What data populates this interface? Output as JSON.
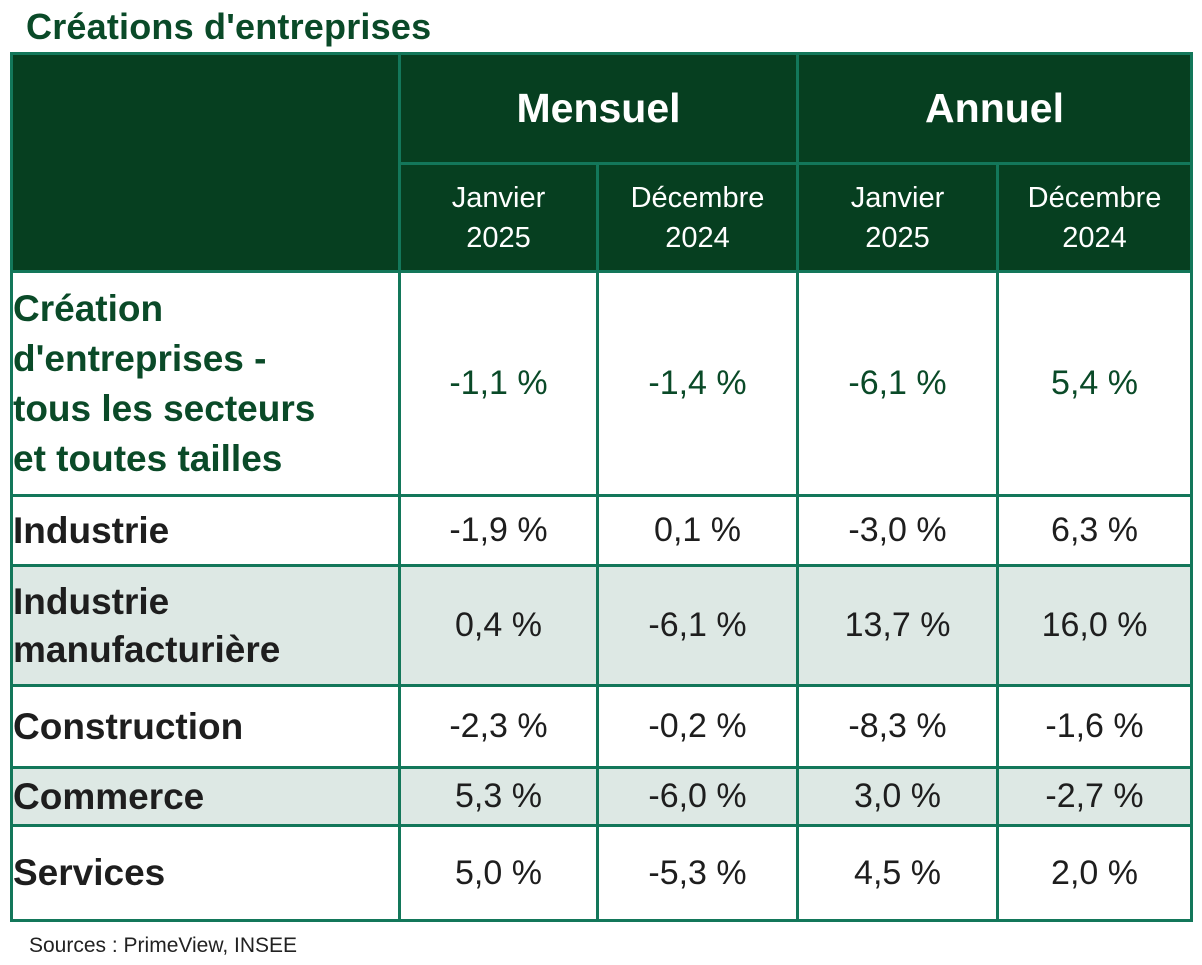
{
  "title": "Créations d'entreprises",
  "header": {
    "groups": [
      "Mensuel",
      "Annuel"
    ],
    "subcolumns": [
      {
        "line1": "Janvier",
        "line2": "2025"
      },
      {
        "line1": "Décembre",
        "line2": "2024"
      },
      {
        "line1": "Janvier",
        "line2": "2025"
      },
      {
        "line1": "Décembre",
        "line2": "2024"
      }
    ]
  },
  "rows": [
    {
      "label_lines": [
        "Création",
        "d'entreprises -",
        "tous les secteurs",
        "et toutes tailles"
      ],
      "values": [
        "-1,1 %",
        "-1,4 %",
        "-6,1 %",
        "5,4 %"
      ]
    },
    {
      "label_lines": [
        "Industrie"
      ],
      "values": [
        "-1,9 %",
        "0,1 %",
        "-3,0 %",
        "6,3 %"
      ]
    },
    {
      "label_lines": [
        "Industrie",
        "manufacturière"
      ],
      "values": [
        "0,4 %",
        "-6,1 %",
        "13,7 %",
        "16,0 %"
      ]
    },
    {
      "label_lines": [
        "Construction"
      ],
      "values": [
        "-2,3 %",
        "-0,2 %",
        "-8,3 %",
        "-1,6 %"
      ]
    },
    {
      "label_lines": [
        "Commerce"
      ],
      "values": [
        "5,3 %",
        "-6,0 %",
        "3,0 %",
        "-2,7 %"
      ]
    },
    {
      "label_lines": [
        "Services"
      ],
      "values": [
        "5,0 %",
        "-5,3 %",
        "4,5 %",
        "2,0 %"
      ]
    }
  ],
  "source": "Sources : PrimeView, INSEE",
  "colors": {
    "header_bg": "#063f20",
    "accent_green": "#0a4a28",
    "border": "#13775a",
    "shade": "#dde8e4"
  }
}
